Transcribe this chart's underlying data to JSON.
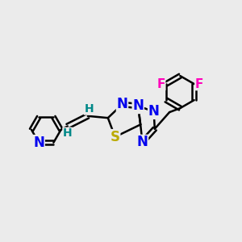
{
  "background_color": "#ebebeb",
  "bond_color": "#000000",
  "bond_width": 1.8,
  "atoms": {
    "S": {
      "color": "#bbaa00",
      "fontsize": 12,
      "fontweight": "bold"
    },
    "N": {
      "color": "#0000ee",
      "fontsize": 12,
      "fontweight": "bold"
    },
    "F": {
      "color": "#ff00bb",
      "fontsize": 11,
      "fontweight": "bold"
    },
    "H": {
      "color": "#008888",
      "fontsize": 10,
      "fontweight": "bold"
    }
  },
  "figsize": [
    3.0,
    3.0
  ],
  "dpi": 100
}
